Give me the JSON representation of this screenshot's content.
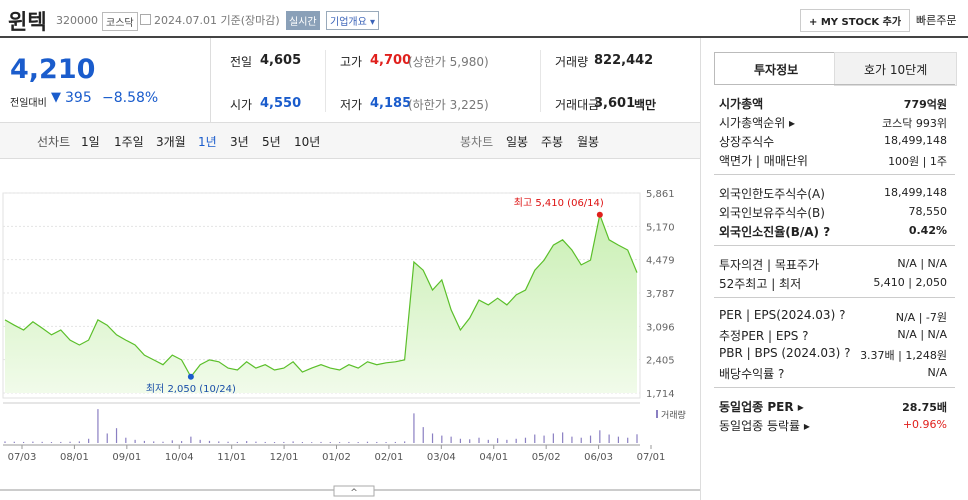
{
  "header": {
    "name": "윈텍",
    "code": "320000",
    "market": "코스닥",
    "date": "2024.07.01 기준(장마감)",
    "realtime": "실시간",
    "company_info": "기업개요",
    "my_stock": "+ MY STOCK 추가",
    "quick_order": "빠른주문"
  },
  "price": {
    "current": "4,210",
    "change_label": "전일대비",
    "change": "395",
    "change_rate": "−8.58%"
  },
  "summary": [
    [
      {
        "label": "전일",
        "value": "4,605"
      },
      {
        "label": "고가",
        "value": "4,700",
        "note": "(상한가 5,980)"
      },
      {
        "label": "거래량",
        "value": "822,442"
      }
    ],
    [
      {
        "label": "시가",
        "value": "4,550"
      },
      {
        "label": "저가",
        "value": "4,185",
        "note": "(하한가 3,225)"
      },
      {
        "label": "거래대금",
        "value": "3,601",
        "unit": "백만"
      }
    ]
  ],
  "line_tabs": [
    "선차트",
    "1일",
    "1주일",
    "3개월",
    "1년",
    "3년",
    "5년",
    "10년"
  ],
  "candle_tabs": [
    "봉차트",
    "일봉",
    "주봉",
    "월봉"
  ],
  "chart_data": {
    "type": "area",
    "values": [
      3230,
      3120,
      3020,
      3190,
      3060,
      2920,
      3020,
      2810,
      2710,
      2810,
      3230,
      3120,
      2920,
      2810,
      2710,
      2500,
      2400,
      2300,
      2500,
      2400,
      2050,
      2300,
      2400,
      2360,
      2230,
      2190,
      2360,
      2230,
      2300,
      2190,
      2230,
      2360,
      2150,
      2230,
      2300,
      2230,
      2190,
      2300,
      2230,
      2360,
      2300,
      2340,
      2360,
      2400,
      4430,
      4260,
      3850,
      4060,
      3440,
      3020,
      3270,
      3640,
      3540,
      3680,
      3540,
      3750,
      3850,
      4260,
      4470,
      4780,
      4890,
      4680,
      4370,
      4470,
      5410,
      4890,
      4780,
      4680,
      4210
    ],
    "volume": [
      150000,
      120000,
      100000,
      130000,
      110000,
      90000,
      100000,
      120000,
      150000,
      400000,
      3200000,
      900000,
      1400000,
      500000,
      300000,
      200000,
      150000,
      120000,
      250000,
      180000,
      600000,
      300000,
      200000,
      150000,
      120000,
      100000,
      180000,
      130000,
      100000,
      90000,
      100000,
      150000,
      90000,
      80000,
      100000,
      90000,
      80000,
      100000,
      90000,
      120000,
      100000,
      90000,
      100000,
      150000,
      2800000,
      1500000,
      900000,
      700000,
      600000,
      400000,
      350000,
      500000,
      300000,
      450000,
      300000,
      400000,
      500000,
      800000,
      700000,
      900000,
      1000000,
      600000,
      500000,
      700000,
      1200000,
      800000,
      600000,
      500000,
      822442
    ],
    "volume_ylim": [
      0,
      3400000
    ],
    "volume_label": "거래량",
    "color": "#5bbf2a",
    "ylim": [
      1714,
      5861
    ],
    "yticks": [
      {
        "value": 1714,
        "label": "1,714"
      },
      {
        "value": 2405,
        "label": "2,405"
      },
      {
        "value": 3096,
        "label": "3,096"
      },
      {
        "value": 3787,
        "label": "3,787"
      },
      {
        "value": 4479,
        "label": "4,479"
      },
      {
        "value": 5170,
        "label": "5,170"
      },
      {
        "value": 5861,
        "label": "5,861"
      }
    ],
    "x_labels": [
      "07/03",
      "08/01",
      "09/01",
      "10/04",
      "11/01",
      "12/01",
      "01/02",
      "02/01",
      "03/04",
      "04/01",
      "05/02",
      "06/03",
      "07/01"
    ],
    "high": {
      "index": 64,
      "label": "최고 5,410 (06/14)"
    },
    "low": {
      "index": 20,
      "label": "최저 2,050 (10/24)"
    },
    "grid": true
  },
  "info_tabs": [
    "투자정보",
    "호가 10단계"
  ],
  "info_groups": [
    [
      {
        "label": "시가총액",
        "value": "779억원",
        "bold": true
      },
      {
        "label": "시가총액순위 ▸",
        "value": "코스닥 993위"
      },
      {
        "label": "상장주식수",
        "value": "18,499,148"
      },
      {
        "label": "액면가 | 매매단위",
        "value": "100원 | 1주"
      }
    ],
    [
      {
        "label": "외국인한도주식수(A)",
        "value": "18,499,148"
      },
      {
        "label": "외국인보유주식수(B)",
        "value": "78,550"
      },
      {
        "label": "외국인소진율(B/A) ?",
        "value": "0.42%",
        "bold": true
      }
    ],
    [
      {
        "label": "투자의견 | 목표주가",
        "value": "N/A | N/A"
      },
      {
        "label": "52주최고 | 최저",
        "value": "5,410 | 2,050"
      }
    ],
    [
      {
        "label": "PER | EPS(2024.03) ?",
        "value": "N/A | -7원"
      },
      {
        "label": "추정PER | EPS ?",
        "value": "N/A | N/A"
      },
      {
        "label": "PBR | BPS (2024.03) ?",
        "value": "3.37배 | 1,248원"
      },
      {
        "label": "배당수익률 ?",
        "value": "N/A"
      }
    ],
    [
      {
        "label": "동일업종 PER ▸",
        "value": "28.75배",
        "bold": true
      },
      {
        "label": "동일업종 등락률 ▸",
        "value": "+0.96%",
        "red": true
      }
    ]
  ]
}
